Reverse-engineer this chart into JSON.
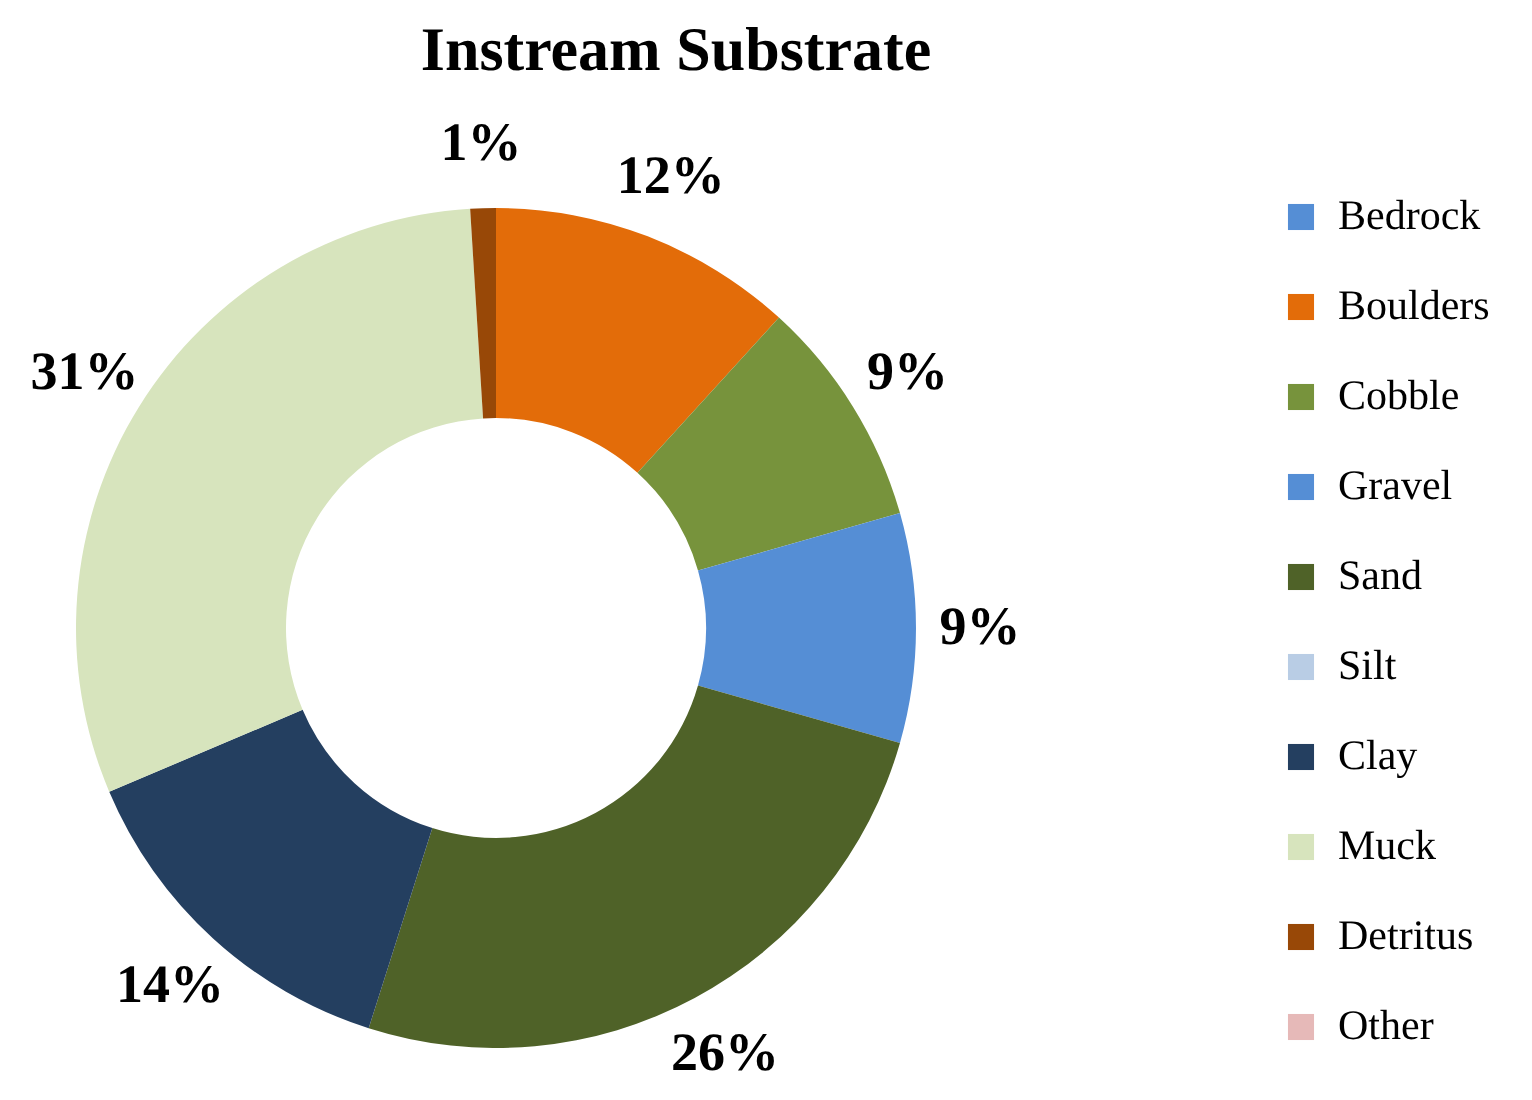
{
  "chart_data": {
    "type": "donut",
    "title": "Instream Substrate",
    "categories": [
      "Bedrock",
      "Boulders",
      "Cobble",
      "Gravel",
      "Sand",
      "Silt",
      "Clay",
      "Muck",
      "Detritus",
      "Other"
    ],
    "values": [
      0,
      12,
      9,
      9,
      26,
      0,
      14,
      31,
      1,
      0
    ],
    "colors": [
      "#558ed5",
      "#e36c09",
      "#77933c",
      "#558ed5",
      "#4f6228",
      "#b9cde5",
      "#243f60",
      "#d7e4bd",
      "#984807",
      "#e6b9b8"
    ],
    "value_labels": [
      null,
      "12%",
      "9%",
      "9%",
      "26%",
      null,
      "14%",
      "31%",
      "1%",
      null
    ],
    "legend": "right"
  }
}
